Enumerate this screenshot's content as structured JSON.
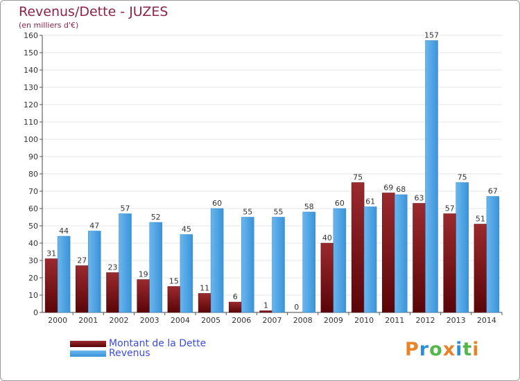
{
  "header": {
    "title": "Revenus/Dette - JUZES",
    "subtitle": "(en milliers d'€)"
  },
  "legend": {
    "debt_label": "Montant de la Dette",
    "revenue_label": "Revenus"
  },
  "logo": {
    "text": "Proxiti",
    "letter_colors": [
      "#e8832a",
      "#2b8fd6",
      "#54b848",
      "#e8832a",
      "#2b8fd6",
      "#54b848",
      "#e8832a"
    ]
  },
  "colors": {
    "debt": "#7a0f13",
    "revenue": "#4aa3e6",
    "title": "#8b2346",
    "legend_text": "#3b4ce0"
  },
  "chart_data": {
    "type": "bar",
    "title": "Revenus/Dette - JUZES",
    "subtitle": "(en milliers d'€)",
    "categories": [
      "2000",
      "2001",
      "2002",
      "2003",
      "2004",
      "2005",
      "2006",
      "2007",
      "2008",
      "2009",
      "2010",
      "2011",
      "2012",
      "2013",
      "2014"
    ],
    "series": [
      {
        "name": "Montant de la Dette",
        "values": [
          31,
          27,
          23,
          19,
          15,
          11,
          6,
          1,
          0,
          40,
          75,
          69,
          63,
          57,
          51
        ]
      },
      {
        "name": "Revenus",
        "values": [
          44,
          47,
          57,
          52,
          45,
          60,
          55,
          55,
          58,
          60,
          61,
          68,
          157,
          75,
          67
        ]
      }
    ],
    "ylim": [
      0,
      160
    ],
    "yticks": [
      0,
      10,
      20,
      30,
      40,
      50,
      60,
      70,
      80,
      90,
      100,
      110,
      120,
      130,
      140,
      150,
      160
    ],
    "grid": true,
    "legend_position": "bottom-left"
  }
}
